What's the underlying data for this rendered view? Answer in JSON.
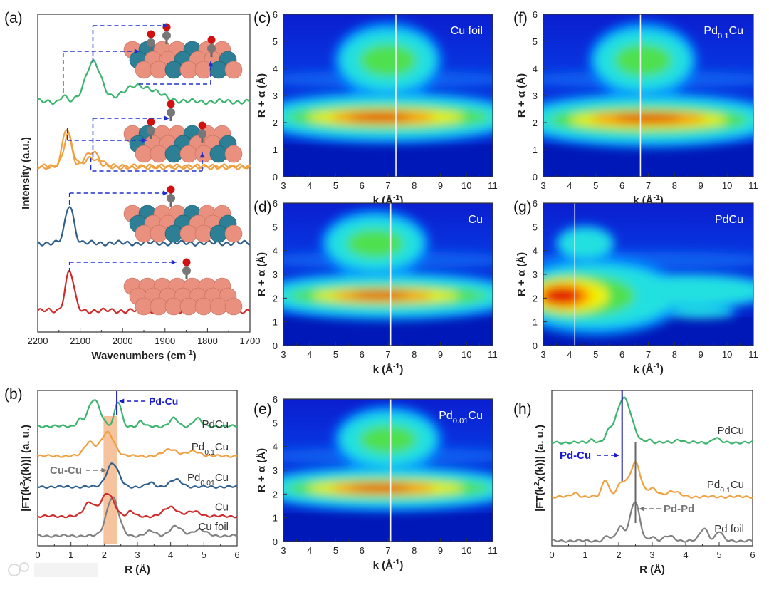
{
  "watermark": "大数跨境",
  "chart_data": [
    {
      "panel": "(a)",
      "type": "line",
      "xlabel": [
        "Wavenumbers (cm",
        {
          "sup": "-1"
        },
        ")"
      ],
      "ylabel": "Intensity (a.u.)",
      "xlim": [
        2200,
        1700
      ],
      "ylim": [
        0,
        10
      ],
      "xticks": [
        "2200",
        "2100",
        "2000",
        "1900",
        "1800",
        "1700"
      ],
      "series": [
        {
          "color": "#d12a2a",
          "baseline": 0.67,
          "peaks": [
            [
              2125,
              1.25,
              10
            ]
          ]
        },
        {
          "color": "#2f5f8a",
          "baseline": 2.8,
          "peaks": [
            [
              2125,
              1.2,
              10
            ]
          ]
        },
        {
          "color": "#f0a040",
          "baseline": 5.2,
          "peaks": [
            [
              2132,
              1.2,
              10
            ],
            [
              2075,
              0.3,
              15
            ]
          ]
        },
        {
          "color": "#f0a040",
          "baseline": 5.2,
          "peaks": [
            [
              2128,
              1.05,
              10
            ],
            [
              2070,
              0.45,
              18
            ]
          ]
        },
        {
          "color": "#3cb46e",
          "baseline": 7.25,
          "peaks": [
            [
              2140,
              0.2,
              6
            ],
            [
              2070,
              1.25,
              18
            ],
            [
              1960,
              0.5,
              40
            ]
          ]
        }
      ]
    },
    {
      "panel": "(b)",
      "type": "line",
      "xlabel": "R (Å)",
      "ylabel": [
        "|FT(k",
        {
          "sup": "2"
        },
        "χ(k))| (a. u.)"
      ],
      "xlim": [
        0,
        6
      ],
      "ylim": [
        0,
        10
      ],
      "xticks": [
        "0",
        "1",
        "2",
        "3",
        "4",
        "5",
        "6"
      ],
      "highlight_band": [
        1.98,
        2.38
      ],
      "series": [
        {
          "label": [
            "Cu foil"
          ],
          "color": "#808080",
          "baseline": 0.64,
          "peaks": [
            [
              2.25,
              2.5,
              0.18
            ],
            [
              3.4,
              0.3,
              0.15
            ],
            [
              4.15,
              0.6,
              0.18
            ],
            [
              4.85,
              0.4,
              0.2
            ]
          ]
        },
        {
          "label": [
            "Cu"
          ],
          "color": "#d12a2a",
          "baseline": 1.9,
          "peaks": [
            [
              1.55,
              0.9,
              0.15
            ],
            [
              2.1,
              1.45,
              0.2
            ],
            [
              2.8,
              0.3,
              0.1
            ],
            [
              4.0,
              0.6,
              0.2
            ],
            [
              4.7,
              0.3,
              0.2
            ]
          ]
        },
        {
          "label": [
            "Pd",
            {
              "sub": "0.01"
            },
            "Cu"
          ],
          "color": "#2f5f8a",
          "baseline": 3.8,
          "peaks": [
            [
              2.25,
              1.5,
              0.18
            ],
            [
              3.4,
              0.25,
              0.12
            ],
            [
              4.15,
              0.45,
              0.18
            ]
          ]
        },
        {
          "label": [
            "Pd",
            {
              "sub": "0.1"
            },
            "Cu"
          ],
          "color": "#f0a040",
          "baseline": 5.78,
          "peaks": [
            [
              1.55,
              0.9,
              0.15
            ],
            [
              2.1,
              1.5,
              0.2
            ],
            [
              4.0,
              0.45,
              0.2
            ],
            [
              4.7,
              0.3,
              0.2
            ]
          ]
        },
        {
          "label": [
            "PdCu"
          ],
          "color": "#3cb46e",
          "baseline": 7.7,
          "peaks": [
            [
              1.25,
              0.4,
              0.08
            ],
            [
              1.7,
              1.7,
              0.18
            ],
            [
              2.42,
              1.55,
              0.1
            ],
            [
              3.1,
              0.3,
              0.08
            ],
            [
              4.1,
              0.5,
              0.12
            ],
            [
              4.8,
              0.5,
              0.12
            ]
          ]
        }
      ],
      "annotations": [
        {
          "text": "Pd-Cu",
          "color": "#1a1ad0",
          "x": 2.38
        },
        {
          "text": "Cu-Cu",
          "color": "#777777",
          "x": 2.2
        }
      ]
    },
    {
      "panel": "(c)",
      "type": "heatmap",
      "title": [
        "Cu foil"
      ],
      "xlabel": [
        "k (Å",
        {
          "sup": "-1"
        },
        ")"
      ],
      "ylabel": "R + α (Å)",
      "xlim": [
        3,
        11
      ],
      "ylim": [
        0,
        6
      ],
      "xticks": [
        "3",
        "4",
        "5",
        "6",
        "7",
        "8",
        "9",
        "10",
        "11"
      ],
      "yticks": [
        "0",
        "1",
        "2",
        "3",
        "4",
        "5",
        "6"
      ],
      "marker_k": 7.3,
      "blobs": [
        [
          7,
          2.2,
          4.6,
          0.75,
          1
        ],
        [
          7,
          2.2,
          3.9,
          0.45,
          2
        ],
        [
          6.9,
          2.2,
          3.0,
          0.3,
          3
        ],
        [
          6.8,
          2.2,
          2.0,
          0.22,
          4
        ],
        [
          6.7,
          2.2,
          1.2,
          0.15,
          5
        ],
        [
          7,
          4.3,
          1.8,
          1.1,
          1
        ],
        [
          7,
          4.3,
          1.1,
          0.6,
          2
        ]
      ]
    },
    {
      "panel": "(d)",
      "type": "heatmap",
      "title": [
        "Cu"
      ],
      "xlabel": [
        "k (Å",
        {
          "sup": "-1"
        },
        ")"
      ],
      "ylabel": "R + α (Å)",
      "xlim": [
        3,
        11
      ],
      "ylim": [
        0,
        6
      ],
      "xticks": [
        "3",
        "4",
        "5",
        "6",
        "7",
        "8",
        "9",
        "10",
        "11"
      ],
      "yticks": [
        "0",
        "1",
        "2",
        "3",
        "4",
        "5",
        "6"
      ],
      "marker_k": 7.1,
      "blobs": [
        [
          7,
          2.1,
          4.6,
          0.8,
          1
        ],
        [
          7,
          2.1,
          3.8,
          0.45,
          2
        ],
        [
          6.9,
          2.1,
          2.8,
          0.3,
          3
        ],
        [
          6.8,
          2.1,
          1.9,
          0.22,
          4
        ],
        [
          6.7,
          2.15,
          1.1,
          0.15,
          5
        ],
        [
          6.5,
          4.3,
          1.8,
          1.1,
          1
        ],
        [
          6.5,
          4.3,
          1.1,
          0.6,
          2
        ]
      ]
    },
    {
      "panel": "(e)",
      "type": "heatmap",
      "title": [
        "Pd",
        {
          "sub": "0.01"
        },
        "Cu"
      ],
      "xlabel": [
        "k (Å",
        {
          "sup": "-1"
        },
        ")"
      ],
      "ylabel": "R + α (Å)",
      "xlim": [
        3,
        11
      ],
      "ylim": [
        0,
        6
      ],
      "xticks": [
        "3",
        "4",
        "5",
        "6",
        "7",
        "8",
        "9",
        "10",
        "11"
      ],
      "yticks": [
        "0",
        "1",
        "2",
        "3",
        "4",
        "5",
        "6"
      ],
      "marker_k": 7.1,
      "blobs": [
        [
          7,
          2.25,
          4.6,
          0.75,
          1
        ],
        [
          7,
          2.25,
          3.9,
          0.45,
          2
        ],
        [
          6.9,
          2.25,
          3.0,
          0.3,
          3
        ],
        [
          6.8,
          2.25,
          2.0,
          0.22,
          4
        ],
        [
          6.7,
          2.25,
          1.2,
          0.15,
          5
        ],
        [
          7,
          4.3,
          1.8,
          1.1,
          1
        ],
        [
          7,
          4.3,
          1.1,
          0.6,
          2
        ]
      ]
    },
    {
      "panel": "(f)",
      "type": "heatmap",
      "title": [
        "Pd",
        {
          "sub": "0.1"
        },
        "Cu"
      ],
      "xlabel": [
        "k (Å",
        {
          "sup": "-1"
        },
        ")"
      ],
      "ylabel": "R + α (Å)",
      "xlim": [
        3,
        11
      ],
      "ylim": [
        0,
        6
      ],
      "xticks": [
        "3",
        "4",
        "5",
        "6",
        "7",
        "8",
        "9",
        "10",
        "11"
      ],
      "yticks": [
        "0",
        "1",
        "2",
        "3",
        "4",
        "5",
        "6"
      ],
      "marker_k": 6.7,
      "blobs": [
        [
          7,
          2.1,
          4.6,
          0.8,
          1
        ],
        [
          7,
          2.1,
          3.8,
          0.5,
          2
        ],
        [
          7,
          2.1,
          3.0,
          0.32,
          3
        ],
        [
          7,
          2.15,
          2.2,
          0.22,
          4
        ],
        [
          7,
          2.15,
          1.3,
          0.15,
          5
        ],
        [
          6.8,
          4.3,
          1.8,
          1.1,
          1
        ],
        [
          6.8,
          4.3,
          1.1,
          0.6,
          2
        ]
      ]
    },
    {
      "panel": "(g)",
      "type": "heatmap",
      "title": [
        "PdCu"
      ],
      "xlabel": [
        "k (Å",
        {
          "sup": "-1"
        },
        ")"
      ],
      "ylabel": "R + α (Å)",
      "xlim": [
        3,
        11
      ],
      "ylim": [
        0,
        6
      ],
      "xticks": [
        "3",
        "4",
        "5",
        "6",
        "7",
        "8",
        "9",
        "10",
        "11"
      ],
      "yticks": [
        "0",
        "1",
        "2",
        "3",
        "4",
        "5",
        "6"
      ],
      "marker_k": 4.2,
      "blobs": [
        [
          5,
          2.1,
          3.0,
          1.3,
          1
        ],
        [
          8.5,
          2.3,
          3.0,
          0.6,
          1
        ],
        [
          4.3,
          2.1,
          2.2,
          0.9,
          2
        ],
        [
          4,
          2.1,
          1.5,
          0.7,
          3
        ],
        [
          3.8,
          2.1,
          1.0,
          0.5,
          4
        ],
        [
          3.7,
          2.1,
          0.7,
          0.35,
          5
        ],
        [
          4.6,
          4.3,
          1.0,
          0.6,
          1
        ],
        [
          9,
          1.4,
          1.2,
          0.2,
          1
        ]
      ]
    },
    {
      "panel": "(h)",
      "type": "line",
      "xlabel": "R (Å)",
      "ylabel": [
        "|FT(k",
        {
          "sup": "2"
        },
        "χ(k))| (a. u.)"
      ],
      "xlim": [
        0,
        6
      ],
      "ylim": [
        0,
        10
      ],
      "xticks": [
        "0",
        "1",
        "2",
        "3",
        "4",
        "5",
        "6"
      ],
      "series": [
        {
          "label": [
            "Pd foil"
          ],
          "color": "#808080",
          "baseline": 0.32,
          "peaks": [
            [
              1.65,
              0.3,
              0.08
            ],
            [
              2.05,
              0.9,
              0.12
            ],
            [
              2.48,
              2.5,
              0.14
            ],
            [
              3.0,
              0.3,
              0.08
            ],
            [
              3.5,
              0.3,
              0.15
            ],
            [
              4.55,
              0.8,
              0.12
            ],
            [
              5.0,
              0.6,
              0.1
            ]
          ]
        },
        {
          "label": [
            "Pd",
            {
              "sub": "0.1"
            },
            "Cu"
          ],
          "color": "#f0a040",
          "baseline": 3.16,
          "peaks": [
            [
              0.7,
              0.25,
              0.1
            ],
            [
              1.6,
              1.1,
              0.1
            ],
            [
              2.1,
              0.9,
              0.15
            ],
            [
              2.5,
              2.2,
              0.15
            ],
            [
              3.0,
              0.5,
              0.15
            ],
            [
              3.6,
              0.35,
              0.2
            ]
          ]
        },
        {
          "label": [
            "PdCu"
          ],
          "color": "#3cb46e",
          "baseline": 6.65,
          "peaks": [
            [
              1.2,
              0.2,
              0.08
            ],
            [
              1.7,
              0.5,
              0.1
            ],
            [
              2.15,
              2.9,
              0.22
            ],
            [
              2.9,
              0.2,
              0.08
            ],
            [
              3.8,
              0.2,
              0.1
            ],
            [
              4.9,
              0.3,
              0.1
            ]
          ]
        }
      ],
      "annotations": [
        {
          "text": "Pd-Cu",
          "color": "#1a1ad0",
          "x": 2.1
        },
        {
          "text": "Pd-Pd",
          "color": "#777777",
          "x": 2.5
        }
      ]
    }
  ]
}
